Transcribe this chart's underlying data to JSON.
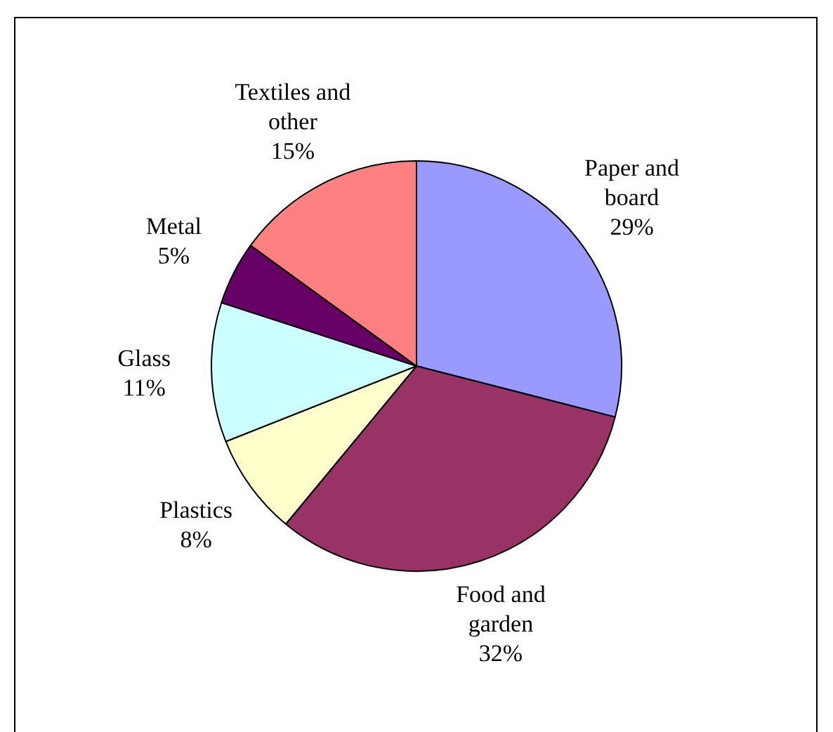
{
  "chart_data": {
    "type": "pie",
    "categories": [
      "Paper and board",
      "Food and garden",
      "Plastics",
      "Glass",
      "Metal",
      "Textiles and other"
    ],
    "values": [
      29,
      32,
      8,
      11,
      5,
      15
    ],
    "colors": [
      "#9999ff",
      "#993366",
      "#ffffcc",
      "#ccffff",
      "#660066",
      "#ff8080"
    ],
    "value_labels": [
      "29%",
      "32%",
      "8%",
      "11%",
      "5%",
      "15%"
    ],
    "legend": false
  }
}
